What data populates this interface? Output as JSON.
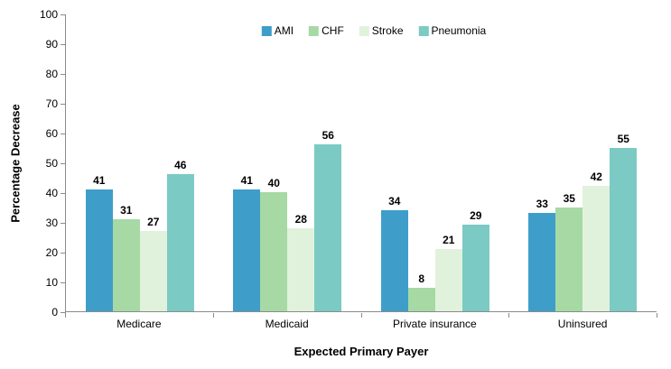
{
  "chart_data": {
    "type": "bar",
    "title": "",
    "xlabel": "Expected Primary Payer",
    "ylabel": "Percentage Decrease",
    "ylim": [
      0,
      100
    ],
    "ytick_step": 10,
    "grid": false,
    "legend_position": "top-center",
    "categories": [
      "Medicare",
      "Medicaid",
      "Private insurance",
      "Uninsured"
    ],
    "series": [
      {
        "name": "AMI",
        "color": "#3E9EC9",
        "values": [
          41,
          41,
          34,
          33
        ]
      },
      {
        "name": "CHF",
        "color": "#A6D9A4",
        "values": [
          31,
          40,
          8,
          35
        ]
      },
      {
        "name": "Stroke",
        "color": "#E1F2DC",
        "values": [
          27,
          28,
          21,
          42
        ]
      },
      {
        "name": "Pneumonia",
        "color": "#7BCAC3",
        "values": [
          46,
          56,
          29,
          55
        ]
      }
    ]
  },
  "colors": {
    "axis": "#8b8b8b",
    "text": "#000000",
    "background": "#ffffff"
  }
}
